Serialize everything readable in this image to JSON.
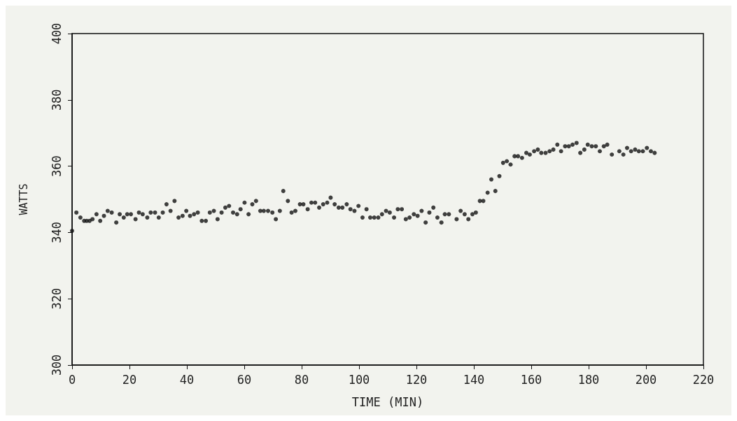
{
  "chart_data": {
    "type": "scatter",
    "xlabel": "TIME (MIN)",
    "ylabel": "WATTS",
    "marker": "circle",
    "xlim": [
      0,
      220
    ],
    "xticks": [
      0,
      20,
      40,
      60,
      80,
      100,
      120,
      140,
      160,
      180,
      200,
      220
    ],
    "ylim": [
      300,
      400
    ],
    "yticks": [
      300,
      320,
      340,
      360,
      380,
      400
    ],
    "series": [
      {
        "color": "#111111",
        "x": [
          0,
          1.5,
          2.9,
          4.2,
          5.1,
          6.1,
          7.1,
          8.5,
          9.8,
          11.1,
          12.4,
          13.8,
          15.4,
          16.6,
          18,
          19.2,
          20.5,
          22.1,
          23.3,
          24.6,
          26.2,
          27.4,
          28.9,
          30.2,
          31.6,
          32.9,
          34.3,
          35.7,
          37.1,
          38.5,
          39.8,
          41.1,
          42.5,
          43.8,
          45.2,
          46.6,
          48,
          49.4,
          50.7,
          52.1,
          53.4,
          54.7,
          56.1,
          57.5,
          58.7,
          60.1,
          61.5,
          62.8,
          64.1,
          65.6,
          66.8,
          68.3,
          69.8,
          71,
          72.4,
          73.6,
          75.2,
          76.5,
          77.8,
          79.4,
          80.6,
          82.1,
          83.4,
          84.7,
          86.1,
          87.5,
          88.9,
          90.1,
          91.5,
          92.9,
          94.2,
          95.7,
          97,
          98.4,
          99.8,
          101.2,
          102.6,
          103.9,
          105.3,
          106.7,
          108,
          109.4,
          110.7,
          112.2,
          113.5,
          114.9,
          116.3,
          117.6,
          119.1,
          120.4,
          121.8,
          123.2,
          124.5,
          125.9,
          127.3,
          128.7,
          129.9,
          131.3,
          134,
          135.4,
          136.8,
          138.1,
          139.5,
          140.7,
          142.1,
          143.3,
          144.8,
          146.1,
          147.5,
          148.9,
          150.2,
          151.5,
          152.8,
          154.2,
          155.4,
          156.8,
          158.3,
          159.5,
          161,
          162.3,
          163.5,
          165,
          166.4,
          167.7,
          169.1,
          170.4,
          171.8,
          173.1,
          174.4,
          175.8,
          177.1,
          178.5,
          179.7,
          181.1,
          182.5,
          183.9,
          185.3,
          186.5,
          188.1,
          190.7,
          192.1,
          193.4,
          194.8,
          196.2,
          197.5,
          198.9,
          200.3,
          201.7,
          203
        ],
        "values": [
          340.5,
          346,
          344.5,
          343.5,
          343.5,
          343.5,
          344,
          345.5,
          343.5,
          345,
          346.5,
          346,
          343,
          345.5,
          344.5,
          345.5,
          345.5,
          344,
          346,
          345.5,
          344.5,
          346,
          346,
          344.5,
          346,
          348.5,
          346.5,
          349.5,
          344.5,
          345,
          346.5,
          345,
          345.5,
          346,
          343.5,
          343.5,
          346,
          346.5,
          344,
          346,
          347.5,
          348,
          346,
          345.5,
          347,
          349,
          345.5,
          348.5,
          349.5,
          346.5,
          346.5,
          346.5,
          346,
          344,
          346.5,
          352.5,
          349.5,
          346,
          346.5,
          348.5,
          348.5,
          347,
          349,
          349,
          347.5,
          348.5,
          349,
          350.5,
          348.5,
          347.5,
          347.5,
          348.5,
          347,
          346.5,
          348,
          344.5,
          347,
          344.5,
          344.5,
          344.5,
          345.5,
          346.5,
          346,
          344.5,
          347,
          347,
          344,
          344.5,
          345.5,
          345,
          346.5,
          343,
          346,
          347.5,
          344.5,
          343,
          345.5,
          345.5,
          344,
          346.5,
          345.5,
          344,
          345.5,
          346,
          349.5,
          349.5,
          352,
          356,
          352.5,
          357,
          361,
          361.5,
          360.5,
          363,
          363,
          362.5,
          364,
          363.5,
          364.5,
          365,
          364,
          364,
          364.5,
          365,
          366.5,
          364.5,
          366,
          366,
          366.5,
          367,
          364,
          365,
          366.5,
          366,
          366,
          364.5,
          366,
          366.5,
          363.5,
          364.5,
          363.5,
          365.5,
          364.5,
          365,
          364.5,
          364.5,
          365.5,
          364.5,
          364
        ]
      }
    ]
  }
}
